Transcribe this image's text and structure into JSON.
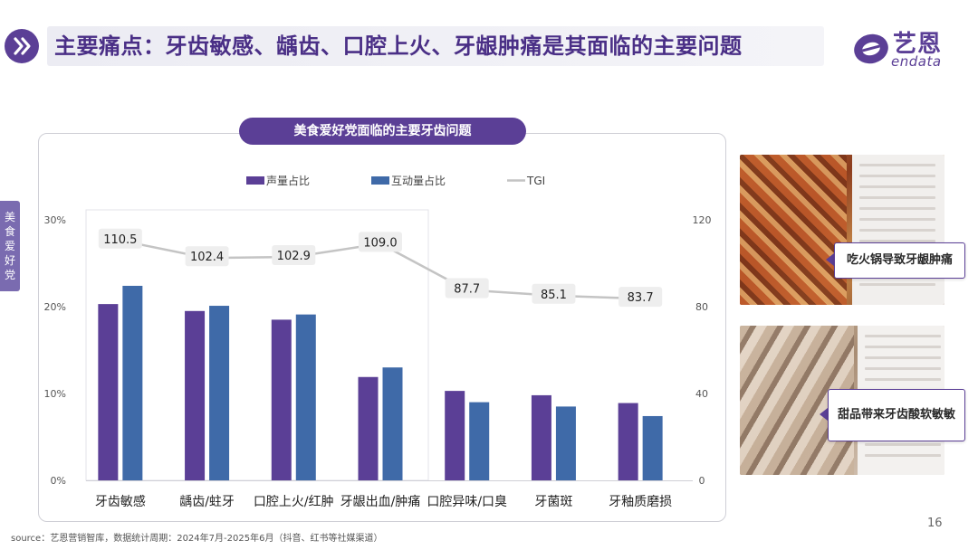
{
  "header": {
    "title": "主要痛点：牙齿敏感、龋齿、口腔上火、牙龈肿痛是其面临的主要问题"
  },
  "logo": {
    "cn": "艺恩",
    "en": "endata"
  },
  "side_tab": {
    "label": "美食爱好党"
  },
  "callouts": [
    {
      "label": "吃火锅导致牙龈肿痛"
    },
    {
      "label": "甜品带来牙齿酸软敏敏"
    }
  ],
  "footer": {
    "source": "source：艺恩营销智库，数据统计周期：2024年7月-2025年6月（抖音、红书等社媒渠道）",
    "page_number": "16"
  },
  "colors": {
    "primary": "#5b3f96",
    "voice_bar": "#5b3f96",
    "interaction_bar": "#3f6aa8",
    "tgi_line": "#c4c4c4"
  },
  "chart_data": {
    "type": "bar",
    "title": "美食爱好党面临的主要牙齿问题",
    "categories": [
      "牙齿敏感",
      "龋齿/蛀牙",
      "口腔上火/红肿",
      "牙龈出血/肿痛",
      "口腔异味/口臭",
      "牙菌斑",
      "牙釉质磨损"
    ],
    "series": [
      {
        "name": "声量占比",
        "kind": "bar",
        "axis": "left",
        "values": [
          20.3,
          19.5,
          18.5,
          11.9,
          10.3,
          9.8,
          8.9
        ]
      },
      {
        "name": "互动量占比",
        "kind": "bar",
        "axis": "left",
        "values": [
          22.4,
          20.1,
          19.1,
          13.0,
          9.0,
          8.5,
          7.4
        ]
      },
      {
        "name": "TGI",
        "kind": "line",
        "axis": "right",
        "values": [
          110.5,
          102.4,
          102.9,
          109.0,
          87.7,
          85.1,
          83.7
        ],
        "labels": [
          "110.5",
          "102.4",
          "102.9",
          "109.0",
          "87.7",
          "85.1",
          "83.7"
        ]
      }
    ],
    "y_left": {
      "ticks": [
        "0%",
        "10%",
        "20%",
        "30%"
      ],
      "ylim": [
        0,
        30
      ]
    },
    "y_right": {
      "ticks": [
        "0",
        "40",
        "80",
        "120"
      ],
      "ylim": [
        0,
        120
      ]
    },
    "legend": {
      "placement": "top-center"
    }
  }
}
